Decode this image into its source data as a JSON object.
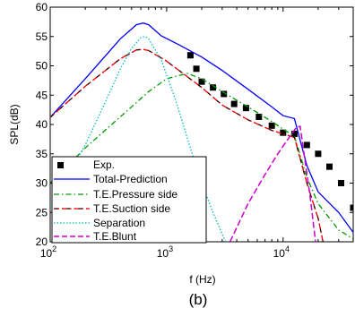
{
  "chart_data": {
    "type": "line",
    "title": "",
    "xlabel": "f (Hz)",
    "ylabel": "SPL(dB)",
    "caption": "(b)",
    "x_scale": "log",
    "xlim": [
      100,
      40000
    ],
    "ylim": [
      20,
      60
    ],
    "x_ticks": [
      {
        "value": 100,
        "base": "10",
        "exp": "2"
      },
      {
        "value": 1000,
        "base": "10",
        "exp": "3"
      },
      {
        "value": 10000,
        "base": "10",
        "exp": "4"
      }
    ],
    "y_ticks": [
      20,
      25,
      30,
      35,
      40,
      45,
      50,
      55,
      60
    ],
    "grid": false,
    "legend_position": "bottom-left",
    "series": [
      {
        "name": "Exp.",
        "style": "markers",
        "color": "#000000",
        "points": [
          [
            1600,
            51.8
          ],
          [
            1800,
            49.5
          ],
          [
            2000,
            47.3
          ],
          [
            2500,
            46.3
          ],
          [
            3100,
            45.2
          ],
          [
            3800,
            43.5
          ],
          [
            4800,
            42.8
          ],
          [
            6200,
            41.3
          ],
          [
            8000,
            39.8
          ],
          [
            10000,
            38.6
          ],
          [
            12500,
            38.4
          ],
          [
            16000,
            36.5
          ],
          [
            20000,
            35.0
          ],
          [
            25000,
            32.8
          ],
          [
            31500,
            30.0
          ],
          [
            40000,
            25.8
          ]
        ]
      },
      {
        "name": "Total-Prediction",
        "style": "solid",
        "color": "#0000ff",
        "points": [
          [
            100,
            41.2
          ],
          [
            200,
            47.8
          ],
          [
            400,
            54.6
          ],
          [
            550,
            57.0
          ],
          [
            630,
            57.3
          ],
          [
            700,
            57.0
          ],
          [
            900,
            55.1
          ],
          [
            1300,
            53.5
          ],
          [
            2000,
            51.5
          ],
          [
            3000,
            49.2
          ],
          [
            5000,
            46.0
          ],
          [
            8000,
            43.0
          ],
          [
            10000,
            41.5
          ],
          [
            12500,
            41.0
          ],
          [
            16000,
            33.0
          ],
          [
            20000,
            28.5
          ],
          [
            30000,
            25.0
          ],
          [
            40000,
            21.6
          ]
        ]
      },
      {
        "name": "T.E.Pressure side",
        "style": "dashdot",
        "color": "#009900",
        "points": [
          [
            100,
            30.0
          ],
          [
            200,
            36.0
          ],
          [
            400,
            41.3
          ],
          [
            700,
            45.6
          ],
          [
            1000,
            47.8
          ],
          [
            1500,
            48.7
          ],
          [
            2000,
            47.8
          ],
          [
            3000,
            45.6
          ],
          [
            5000,
            43.0
          ],
          [
            8000,
            40.5
          ],
          [
            10000,
            39.2
          ],
          [
            12500,
            38.0
          ],
          [
            16000,
            31.0
          ],
          [
            20000,
            26.5
          ],
          [
            30000,
            22.0
          ],
          [
            40000,
            20.5
          ]
        ]
      },
      {
        "name": "T.E.Suction side",
        "style": "dashdot",
        "color": "#000000",
        "color_alt": "#ff0000",
        "points": [
          [
            100,
            41.2
          ],
          [
            200,
            46.5
          ],
          [
            400,
            51.2
          ],
          [
            550,
            52.7
          ],
          [
            630,
            52.8
          ],
          [
            700,
            52.6
          ],
          [
            1000,
            50.8
          ],
          [
            2000,
            46.3
          ],
          [
            3000,
            43.3
          ],
          [
            5000,
            40.8
          ],
          [
            8000,
            39.0
          ],
          [
            10000,
            38.4
          ],
          [
            12500,
            37.8
          ],
          [
            16000,
            30.0
          ],
          [
            20000,
            24.0
          ],
          [
            22000,
            20.0
          ]
        ]
      },
      {
        "name": "Separation",
        "style": "dotted",
        "color": "#00bbbb",
        "points": [
          [
            100,
            26.0
          ],
          [
            200,
            36.5
          ],
          [
            300,
            44.0
          ],
          [
            400,
            49.5
          ],
          [
            500,
            53.0
          ],
          [
            600,
            54.8
          ],
          [
            650,
            55.0
          ],
          [
            700,
            54.6
          ],
          [
            900,
            51.0
          ],
          [
            1200,
            44.0
          ],
          [
            1600,
            36.0
          ],
          [
            2000,
            30.0
          ],
          [
            2500,
            25.0
          ],
          [
            3200,
            20.0
          ]
        ]
      },
      {
        "name": "T.E.Blunt",
        "style": "dashed",
        "color": "#cc00cc",
        "points": [
          [
            3500,
            20.0
          ],
          [
            5000,
            26.5
          ],
          [
            7000,
            31.5
          ],
          [
            9000,
            35.0
          ],
          [
            11000,
            37.5
          ],
          [
            13000,
            39.5
          ],
          [
            14000,
            39.7
          ],
          [
            15000,
            35.5
          ],
          [
            17000,
            28.0
          ],
          [
            19000,
            20.0
          ]
        ]
      }
    ]
  }
}
